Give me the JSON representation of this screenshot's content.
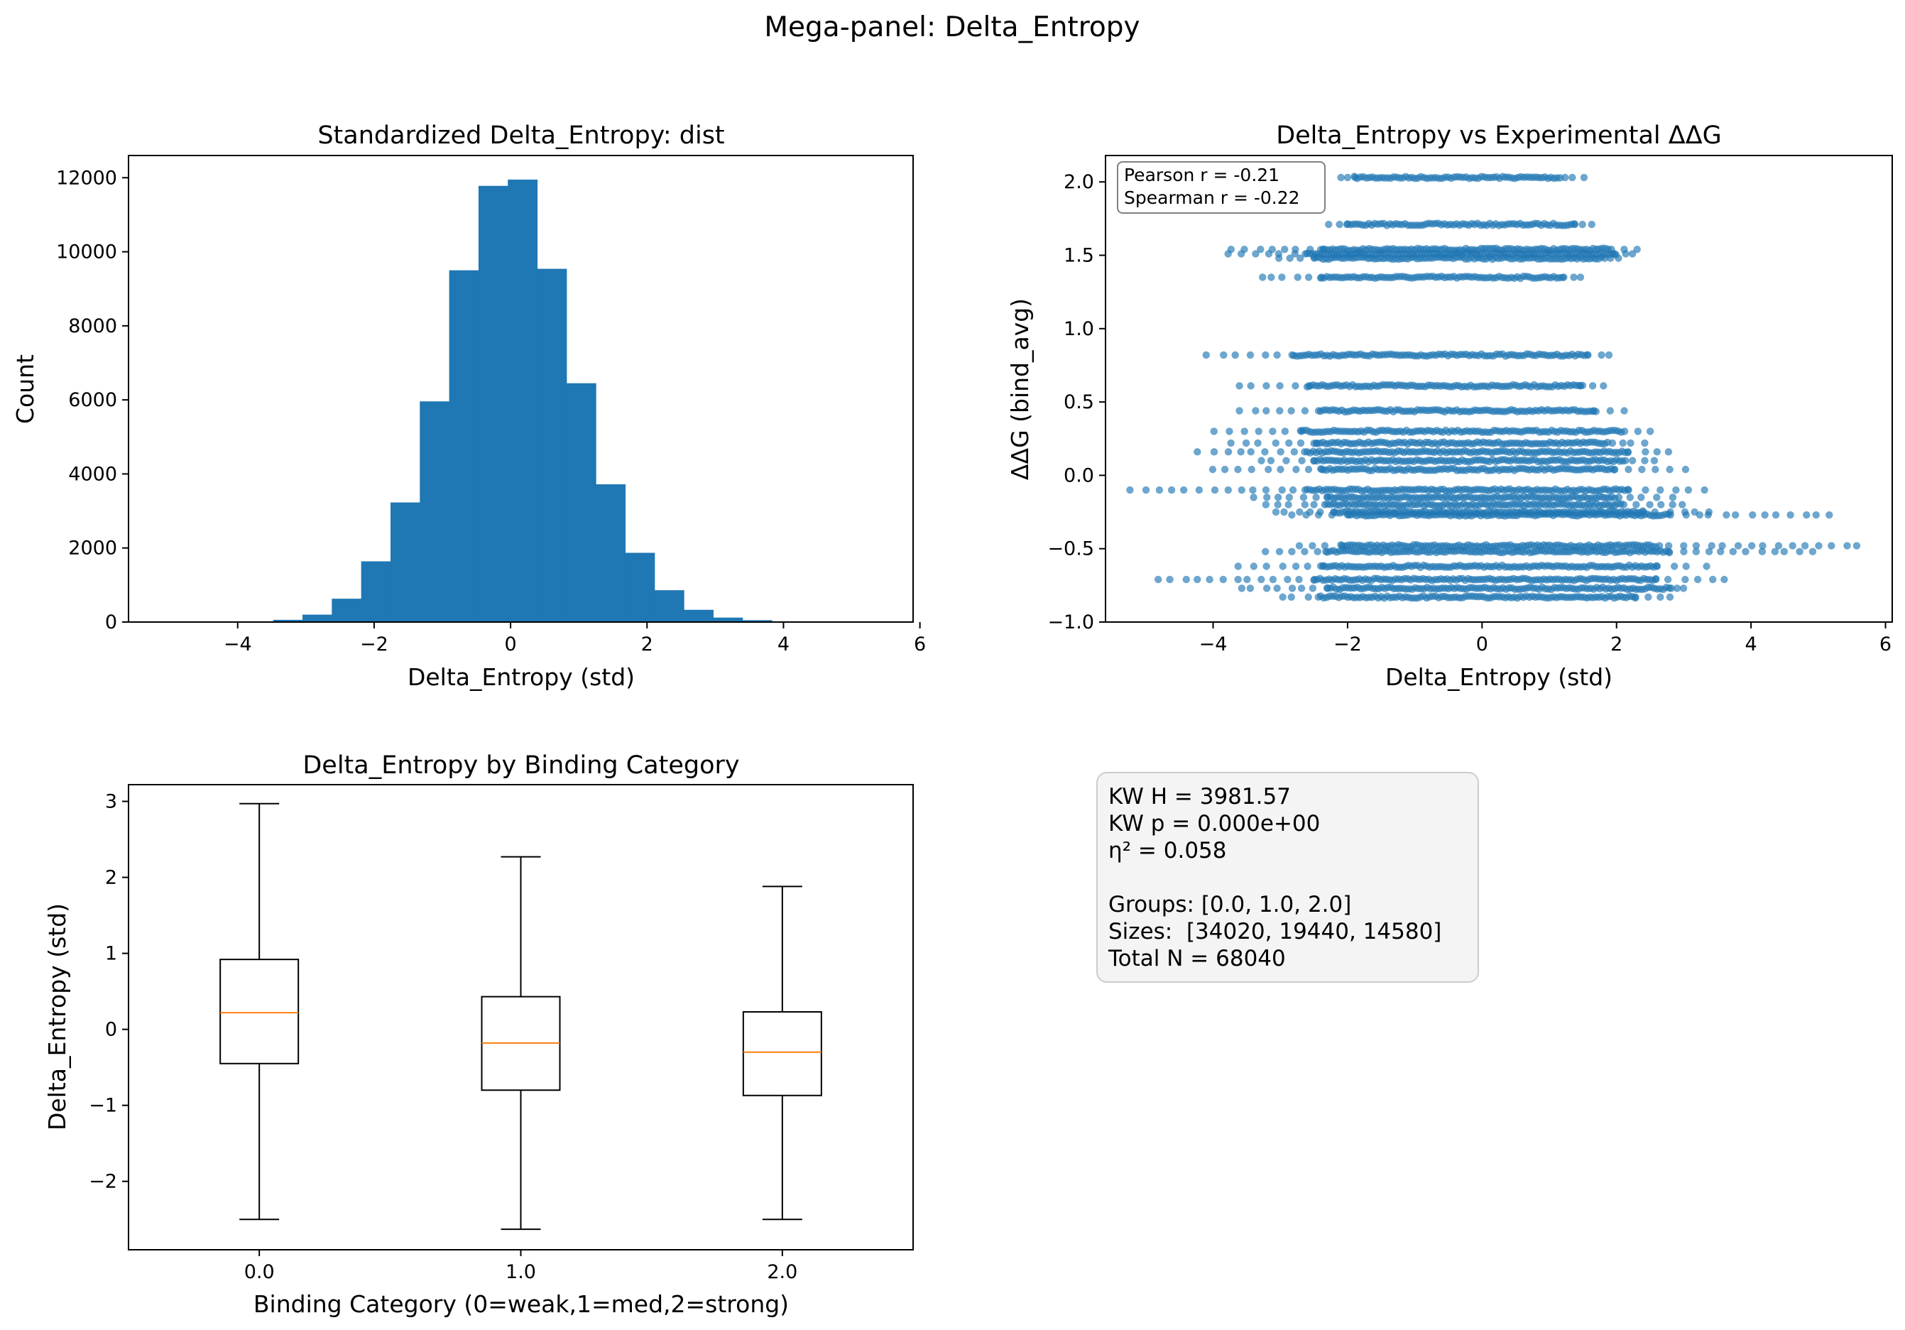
{
  "suptitle": "Mega-panel: Delta_Entropy",
  "chart_data": [
    {
      "type": "bar",
      "title": "Standardized Delta_Entropy: dist",
      "xlabel": "Delta_Entropy (std)",
      "ylabel": "Count",
      "xlim": [
        -5.6,
        5.9
      ],
      "ylim": [
        0,
        12600
      ],
      "xticks": [
        -4,
        -2,
        0,
        2,
        4,
        6
      ],
      "yticks": [
        0,
        2000,
        4000,
        6000,
        8000,
        10000,
        12000
      ],
      "color": "#1f77b4",
      "bins": [
        {
          "x0": -3.48,
          "x1": -3.05,
          "count": 60
        },
        {
          "x0": -3.05,
          "x1": -2.62,
          "count": 200
        },
        {
          "x0": -2.62,
          "x1": -2.19,
          "count": 630
        },
        {
          "x0": -2.19,
          "x1": -1.76,
          "count": 1640
        },
        {
          "x0": -1.76,
          "x1": -1.33,
          "count": 3230
        },
        {
          "x0": -1.33,
          "x1": -0.9,
          "count": 5960
        },
        {
          "x0": -0.9,
          "x1": -0.47,
          "count": 9500
        },
        {
          "x0": -0.47,
          "x1": -0.04,
          "count": 11780
        },
        {
          "x0": -0.04,
          "x1": 0.39,
          "count": 11950
        },
        {
          "x0": 0.39,
          "x1": 0.82,
          "count": 9540
        },
        {
          "x0": 0.82,
          "x1": 1.25,
          "count": 6450
        },
        {
          "x0": 1.25,
          "x1": 1.68,
          "count": 3720
        },
        {
          "x0": 1.68,
          "x1": 2.11,
          "count": 1870
        },
        {
          "x0": 2.11,
          "x1": 2.54,
          "count": 860
        },
        {
          "x0": 2.54,
          "x1": 2.97,
          "count": 330
        },
        {
          "x0": 2.97,
          "x1": 3.4,
          "count": 120
        },
        {
          "x0": 3.4,
          "x1": 3.83,
          "count": 50
        },
        {
          "x0": 3.83,
          "x1": 4.26,
          "count": 15
        }
      ]
    },
    {
      "type": "scatter",
      "title": "Delta_Entropy vs Experimental ΔΔG",
      "xlabel": "Delta_Entropy (std)",
      "ylabel": "ΔΔG (bind_avg)",
      "xlim": [
        -5.6,
        6.1
      ],
      "ylim": [
        -1.0,
        2.18
      ],
      "xticks": [
        -4,
        -2,
        0,
        2,
        4,
        6
      ],
      "yticks": [
        -1.0,
        -0.5,
        0.0,
        0.5,
        1.0,
        1.5,
        2.0
      ],
      "color": "#1f77b4",
      "annotation": [
        "Pearson r = -0.21",
        "Spearman r = -0.22"
      ],
      "levels": [
        {
          "y": 2.03,
          "dense": [
            -1.9,
            1.2
          ],
          "sparse": [
            -2.1,
            1.5
          ]
        },
        {
          "y": 1.71,
          "dense": [
            -2.0,
            1.4
          ],
          "sparse": [
            -2.3,
            1.6
          ]
        },
        {
          "y": 1.54,
          "dense": [
            -2.4,
            1.9
          ],
          "sparse": [
            -3.7,
            2.3
          ]
        },
        {
          "y": 1.51,
          "dense": [
            -2.6,
            2.0
          ],
          "sparse": [
            -3.8,
            2.2
          ]
        },
        {
          "y": 1.48,
          "dense": [
            -2.5,
            1.8
          ],
          "sparse": [
            -3.0,
            2.0
          ]
        },
        {
          "y": 1.35,
          "dense": [
            -2.4,
            1.2
          ],
          "sparse": [
            -3.3,
            1.5
          ]
        },
        {
          "y": 0.82,
          "dense": [
            -2.8,
            1.6
          ],
          "sparse": [
            -4.1,
            1.9
          ]
        },
        {
          "y": 0.61,
          "dense": [
            -2.6,
            1.5
          ],
          "sparse": [
            -3.6,
            1.8
          ]
        },
        {
          "y": 0.44,
          "dense": [
            -2.4,
            1.7
          ],
          "sparse": [
            -3.6,
            2.1
          ]
        },
        {
          "y": 0.3,
          "dense": [
            -2.7,
            2.1
          ],
          "sparse": [
            -4.0,
            2.5
          ]
        },
        {
          "y": 0.22,
          "dense": [
            -2.5,
            1.9
          ],
          "sparse": [
            -3.7,
            2.4
          ]
        },
        {
          "y": 0.16,
          "dense": [
            -2.6,
            2.2
          ],
          "sparse": [
            -4.2,
            2.8
          ]
        },
        {
          "y": 0.1,
          "dense": [
            -2.5,
            2.1
          ],
          "sparse": [
            -3.3,
            2.6
          ]
        },
        {
          "y": 0.04,
          "dense": [
            -2.4,
            2.0
          ],
          "sparse": [
            -4.0,
            3.0
          ]
        },
        {
          "y": -0.1,
          "dense": [
            -2.6,
            2.2
          ],
          "sparse": [
            -5.2,
            3.3
          ]
        },
        {
          "y": -0.15,
          "dense": [
            -2.3,
            2.0
          ],
          "sparse": [
            -3.4,
            2.8
          ]
        },
        {
          "y": -0.2,
          "dense": [
            -2.3,
            2.1
          ],
          "sparse": [
            -3.2,
            3.0
          ]
        },
        {
          "y": -0.25,
          "dense": [
            -2.2,
            2.4
          ],
          "sparse": [
            -3.1,
            3.4
          ]
        },
        {
          "y": -0.27,
          "dense": [
            -2.0,
            2.8
          ],
          "sparse": [
            -2.8,
            5.2
          ]
        },
        {
          "y": -0.48,
          "dense": [
            -2.1,
            2.6
          ],
          "sparse": [
            -2.7,
            5.6
          ]
        },
        {
          "y": -0.52,
          "dense": [
            -2.3,
            2.8
          ],
          "sparse": [
            -3.2,
            4.9
          ]
        },
        {
          "y": -0.62,
          "dense": [
            -2.4,
            2.6
          ],
          "sparse": [
            -3.6,
            3.3
          ]
        },
        {
          "y": -0.71,
          "dense": [
            -2.5,
            2.6
          ],
          "sparse": [
            -4.8,
            3.6
          ]
        },
        {
          "y": -0.77,
          "dense": [
            -2.3,
            2.8
          ],
          "sparse": [
            -3.6,
            3.0
          ]
        },
        {
          "y": -0.83,
          "dense": [
            -2.4,
            2.3
          ],
          "sparse": [
            -3.0,
            2.8
          ]
        }
      ]
    },
    {
      "type": "box",
      "title": "Delta_Entropy by Binding Category",
      "xlabel": "Binding Category (0=weak,1=med,2=strong)",
      "ylabel": "Delta_Entropy (std)",
      "ylim": [
        -2.9,
        3.22
      ],
      "yticks": [
        -2,
        -1,
        0,
        1,
        2,
        3
      ],
      "categories": [
        "0.0",
        "1.0",
        "2.0"
      ],
      "boxes": [
        {
          "low": -2.5,
          "q1": -0.45,
          "median": 0.22,
          "q3": 0.92,
          "high": 2.97
        },
        {
          "low": -2.63,
          "q1": -0.8,
          "median": -0.18,
          "q3": 0.43,
          "high": 2.27
        },
        {
          "low": -2.5,
          "q1": -0.87,
          "median": -0.3,
          "q3": 0.23,
          "high": 1.88
        }
      ]
    }
  ],
  "stats_box": {
    "lines": [
      "KW H = 3981.57",
      "KW p = 0.000e+00",
      "η² = 0.058",
      "",
      "Groups: [0.0, 1.0, 2.0]",
      "Sizes:  [34020, 19440, 14580]",
      "Total N = 68040"
    ]
  }
}
